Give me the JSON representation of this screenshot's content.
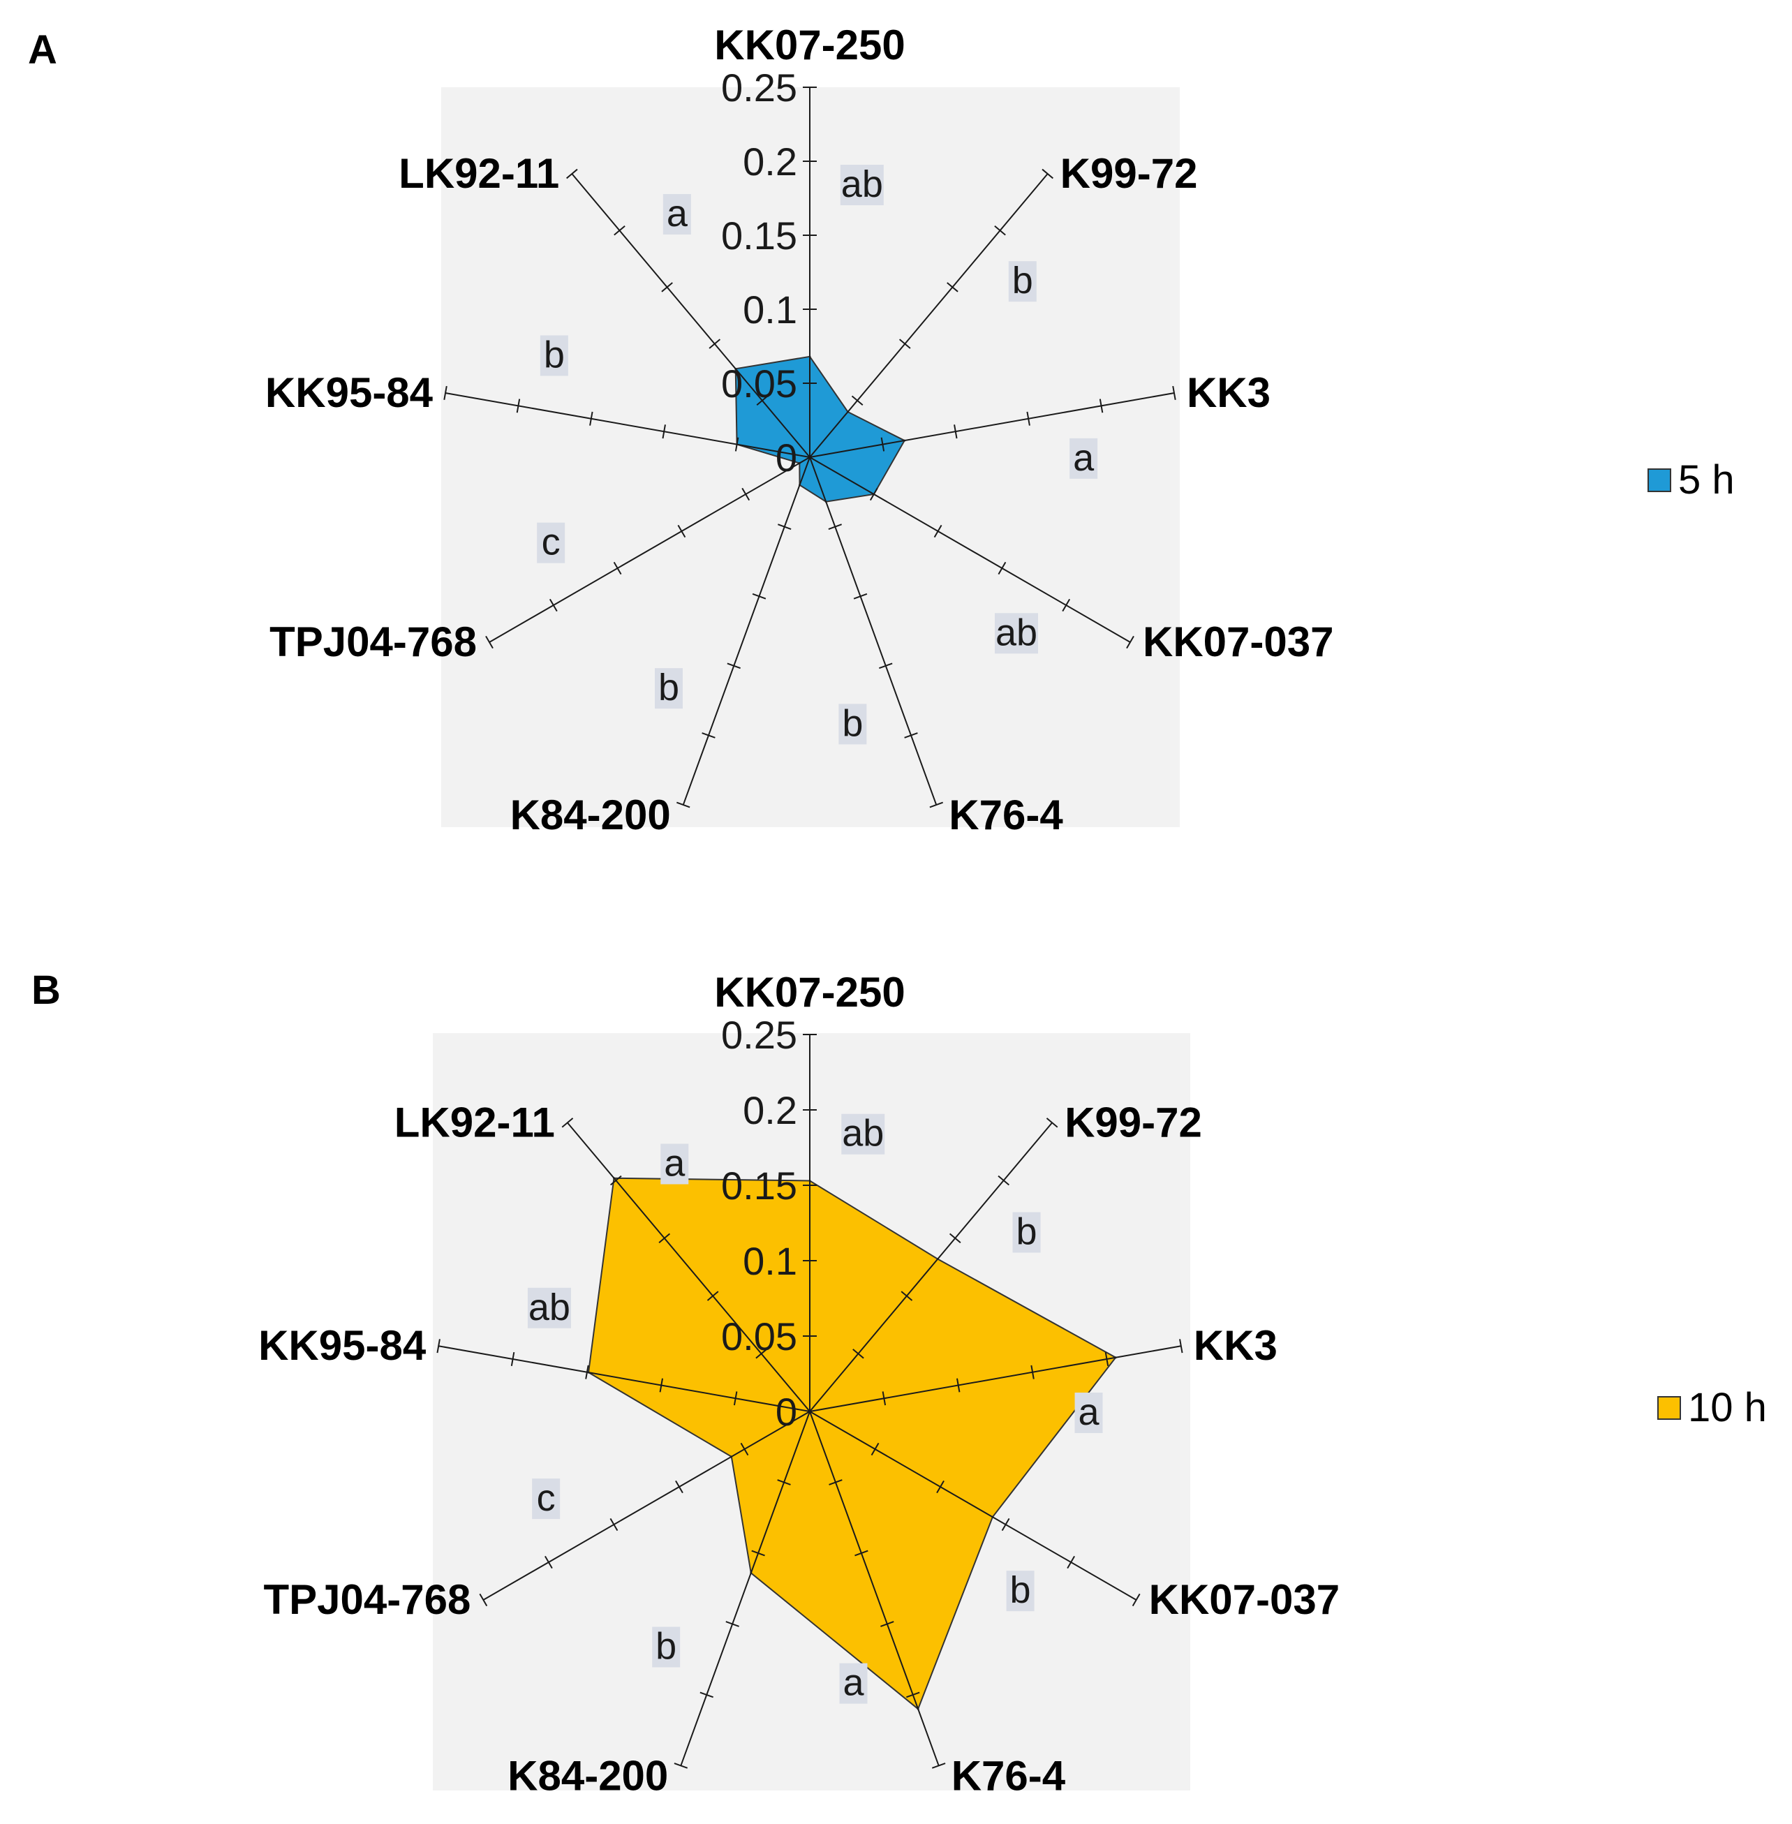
{
  "chart_data": [
    {
      "type": "radar",
      "panel": "A",
      "categories": [
        "KK07-250",
        "K99-72",
        "KK3",
        "KK07-037",
        "K76-4",
        "K84-200",
        "TPJ04-768",
        "KK95-84",
        "LK92-11"
      ],
      "series": [
        {
          "name": "5 h",
          "values": [
            0.068,
            0.04,
            0.065,
            0.05,
            0.032,
            0.02,
            0.008,
            0.05,
            0.078
          ]
        }
      ],
      "significance": [
        "ab",
        "b",
        "a",
        "ab",
        "b",
        "b",
        "c",
        "b",
        "a"
      ],
      "rlim": [
        0,
        0.25
      ],
      "ticks": [
        "0",
        "0.05",
        "0.1",
        "0.15",
        "0.2",
        "0.25"
      ],
      "legend": "right",
      "color": "#1f9ad6"
    },
    {
      "type": "radar",
      "panel": "B",
      "categories": [
        "KK07-250",
        "K99-72",
        "KK3",
        "KK07-037",
        "K76-4",
        "K84-200",
        "TPJ04-768",
        "KK95-84",
        "LK92-11"
      ],
      "series": [
        {
          "name": "10 h",
          "values": [
            0.153,
            0.132,
            0.206,
            0.14,
            0.21,
            0.114,
            0.06,
            0.149,
            0.202
          ]
        }
      ],
      "significance": [
        "ab",
        "b",
        "a",
        "b",
        "a",
        "b",
        "c",
        "ab",
        "a"
      ],
      "rlim": [
        0,
        0.25
      ],
      "ticks": [
        "0",
        "0.05",
        "0.1",
        "0.15",
        "0.2",
        "0.25"
      ],
      "legend": "right",
      "color": "#fcc000"
    }
  ],
  "panels": {
    "a": "A",
    "b": "B"
  },
  "legend": {
    "a": "5 h",
    "b": "10 h"
  }
}
